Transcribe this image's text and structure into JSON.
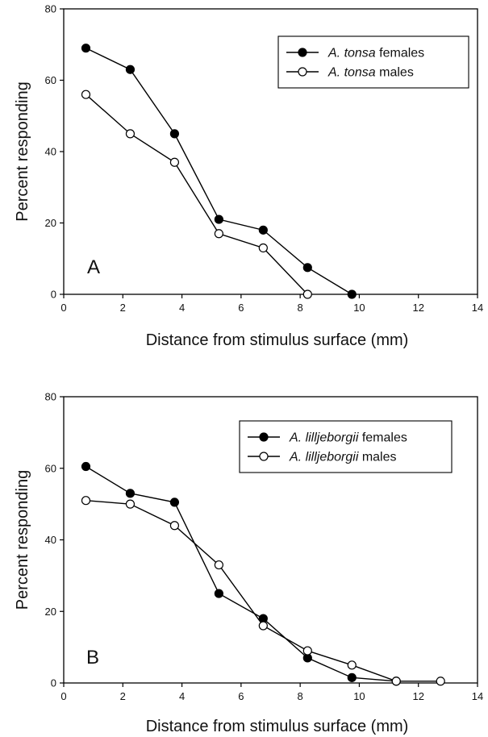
{
  "chart_data": [
    {
      "type": "line",
      "panel_label": "A",
      "xlabel": "Distance from stimulus surface (mm)",
      "ylabel": "Percent responding",
      "xlim": [
        0,
        14
      ],
      "ylim": [
        0,
        80
      ],
      "x_ticks": [
        "0",
        "2",
        "4",
        "6",
        "8",
        "10",
        "12",
        "14"
      ],
      "y_ticks": [
        "0",
        "20",
        "40",
        "60",
        "80"
      ],
      "legend_position": "top-right",
      "series": [
        {
          "name_species": "A. tonsa",
          "name_suffix": " females",
          "marker": "filled-circle",
          "points": [
            {
              "x": 0.75,
              "y": 69
            },
            {
              "x": 2.25,
              "y": 63
            },
            {
              "x": 3.75,
              "y": 45
            },
            {
              "x": 5.25,
              "y": 21
            },
            {
              "x": 6.75,
              "y": 18
            },
            {
              "x": 8.25,
              "y": 7.5
            },
            {
              "x": 9.75,
              "y": 0
            }
          ]
        },
        {
          "name_species": "A. tonsa",
          "name_suffix": " males",
          "marker": "open-circle",
          "points": [
            {
              "x": 0.75,
              "y": 56
            },
            {
              "x": 2.25,
              "y": 45
            },
            {
              "x": 3.75,
              "y": 37
            },
            {
              "x": 5.25,
              "y": 17
            },
            {
              "x": 6.75,
              "y": 13
            },
            {
              "x": 8.25,
              "y": 0
            }
          ]
        }
      ]
    },
    {
      "type": "line",
      "panel_label": "B",
      "xlabel": "Distance from stimulus surface (mm)",
      "ylabel": "Percent responding",
      "xlim": [
        0,
        14
      ],
      "ylim": [
        0,
        80
      ],
      "x_ticks": [
        "0",
        "2",
        "4",
        "6",
        "8",
        "10",
        "12",
        "14"
      ],
      "y_ticks": [
        "0",
        "20",
        "40",
        "60",
        "80"
      ],
      "legend_position": "top-right",
      "series": [
        {
          "name_species": "A. lilljeborgii",
          "name_suffix": " females",
          "marker": "filled-circle",
          "points": [
            {
              "x": 0.75,
              "y": 60.5
            },
            {
              "x": 2.25,
              "y": 53
            },
            {
              "x": 3.75,
              "y": 50.5
            },
            {
              "x": 5.25,
              "y": 25
            },
            {
              "x": 6.75,
              "y": 18
            },
            {
              "x": 8.25,
              "y": 7
            },
            {
              "x": 9.75,
              "y": 1.5
            },
            {
              "x": 11.25,
              "y": 0.5
            }
          ]
        },
        {
          "name_species": "A. lilljeborgii",
          "name_suffix": " males",
          "marker": "open-circle",
          "points": [
            {
              "x": 0.75,
              "y": 51
            },
            {
              "x": 2.25,
              "y": 50
            },
            {
              "x": 3.75,
              "y": 44
            },
            {
              "x": 5.25,
              "y": 33
            },
            {
              "x": 6.75,
              "y": 16
            },
            {
              "x": 8.25,
              "y": 9
            },
            {
              "x": 9.75,
              "y": 5
            },
            {
              "x": 11.25,
              "y": 0.5
            },
            {
              "x": 12.75,
              "y": 0.5
            }
          ]
        }
      ]
    }
  ]
}
